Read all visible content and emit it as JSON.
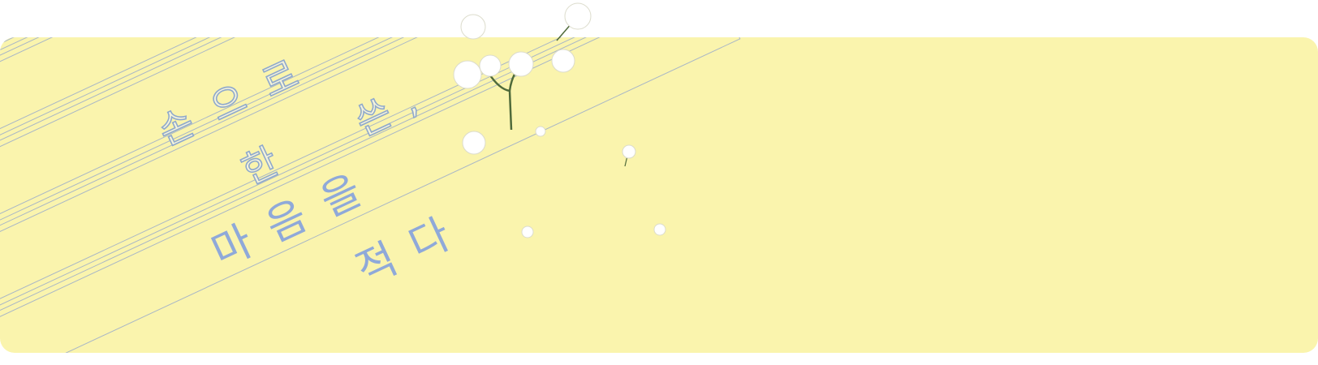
{
  "text": {
    "line1": "손으로",
    "line2": "쓴,",
    "line3": "한",
    "line4": "마음을",
    "line5": "적다"
  }
}
